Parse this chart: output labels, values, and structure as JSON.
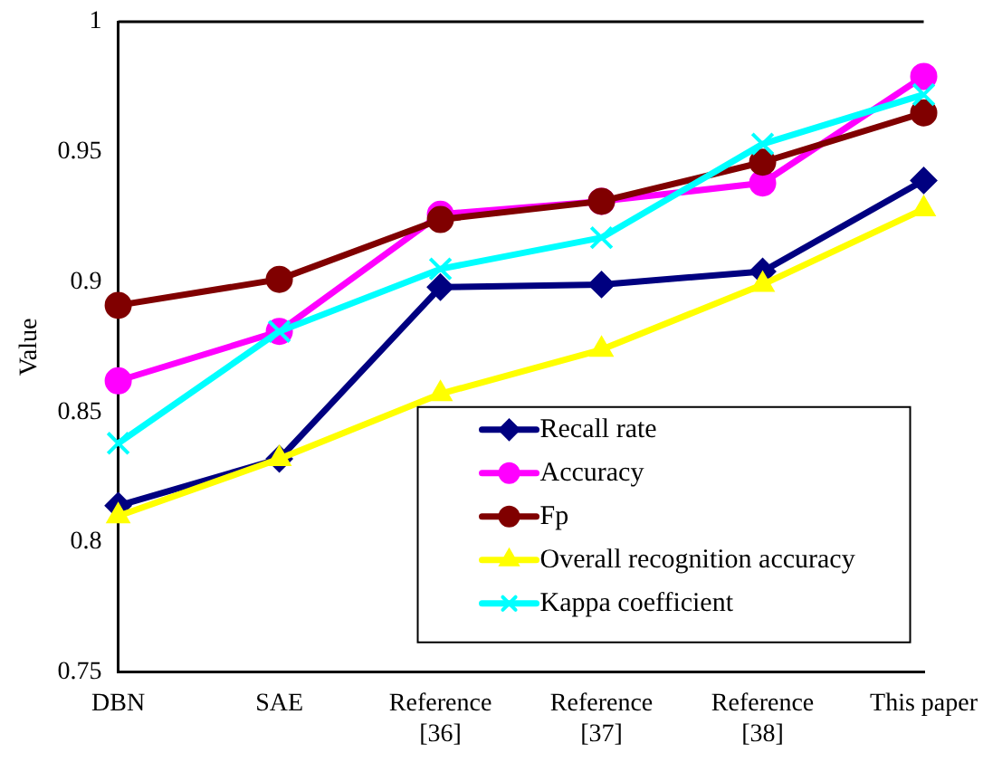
{
  "chart_data": {
    "type": "line",
    "ylabel": "Value",
    "categories": [
      "DBN",
      "SAE",
      "Reference [36]",
      "Reference [37]",
      "Reference [38]",
      "This paper"
    ],
    "ylim": [
      0.75,
      1
    ],
    "yticks": [
      {
        "value": 0.75,
        "label": "0.75"
      },
      {
        "value": 0.8,
        "label": "0.8"
      },
      {
        "value": 0.85,
        "label": "0.85"
      },
      {
        "value": 0.9,
        "label": "0.9"
      },
      {
        "value": 0.95,
        "label": "0.95"
      },
      {
        "value": 1,
        "label": "1"
      }
    ],
    "grid": false,
    "legend": "bottom right",
    "line_style": "solid",
    "series": [
      {
        "name": "Recall rate",
        "color": "#000080",
        "marker": "diamond",
        "values": [
          0.814,
          0.832,
          0.898,
          0.899,
          0.904,
          0.939
        ]
      },
      {
        "name": "Accuracy",
        "color": "#ff00ff",
        "marker": "circle",
        "values": [
          0.862,
          0.881,
          0.926,
          0.931,
          0.938,
          0.979
        ]
      },
      {
        "name": "Fp",
        "color": "#800000",
        "marker": "circle",
        "values": [
          0.891,
          0.901,
          0.924,
          0.931,
          0.946,
          0.965
        ]
      },
      {
        "name": "Overall recognition accuracy",
        "color": "#ffff00",
        "marker": "triangle",
        "values": [
          0.81,
          0.832,
          0.857,
          0.874,
          0.899,
          0.928
        ]
      },
      {
        "name": "Kappa coefficient",
        "color": "#00ffff",
        "marker": "cross",
        "values": [
          0.838,
          0.881,
          0.905,
          0.917,
          0.953,
          0.972
        ]
      }
    ]
  }
}
